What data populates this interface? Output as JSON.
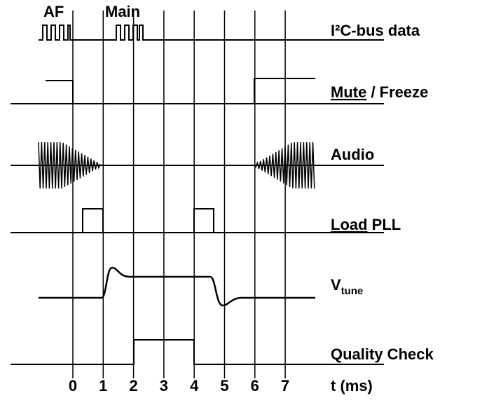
{
  "bursts": [
    "AF",
    "Main"
  ],
  "signals": [
    {
      "label": "I²C-bus data"
    },
    {
      "underlined": "Mute",
      "rest": " / Freeze"
    },
    {
      "label": "Audio"
    },
    {
      "underlined": "Load",
      "rest": " PLL"
    },
    {
      "label": "V",
      "subscript": "tune"
    },
    {
      "label": "Quality Check"
    }
  ],
  "time_axis": {
    "ticks": [
      "0",
      "1",
      "2",
      "3",
      "4",
      "5",
      "6",
      "7"
    ],
    "label": "t (ms)"
  }
}
